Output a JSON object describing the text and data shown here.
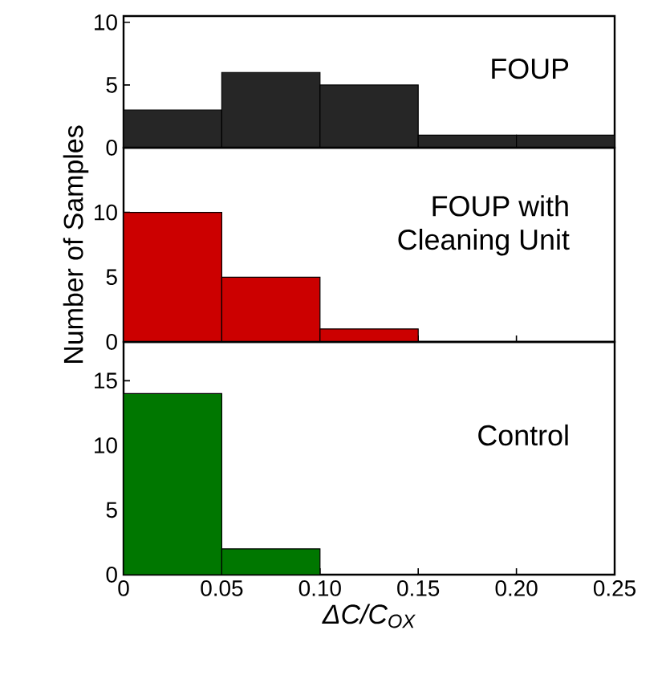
{
  "chart_data": [
    {
      "type": "histogram",
      "bins": [
        0,
        0.05,
        0.1,
        0.15,
        0.2,
        0.25
      ],
      "values": [
        3,
        6,
        5,
        1,
        1
      ],
      "color": "#262626",
      "xlim": [
        0,
        0.25
      ],
      "xticks": [
        {
          "value": 0.05,
          "label": null
        },
        {
          "value": 0.1,
          "label": null
        },
        {
          "value": 0.15,
          "label": null
        },
        {
          "value": 0.2,
          "label": null
        }
      ],
      "ylim": [
        0,
        10.5
      ],
      "yticks": [
        0,
        5,
        10
      ],
      "tick_labels": "y",
      "annotations": [
        "FOUP"
      ]
    },
    {
      "type": "histogram",
      "bins": [
        0,
        0.05,
        0.1,
        0.15,
        0.2,
        0.25
      ],
      "values": [
        10,
        5,
        1,
        0,
        0
      ],
      "color": "#cc0000",
      "xlim": [
        0,
        0.25
      ],
      "xticks": [
        {
          "value": 0.05,
          "label": null
        },
        {
          "value": 0.1,
          "label": null
        },
        {
          "value": 0.15,
          "label": null
        },
        {
          "value": 0.2,
          "label": null
        }
      ],
      "ylim": [
        0,
        15
      ],
      "yticks": [
        0,
        5,
        10
      ],
      "tick_labels": "y",
      "ylabel": "Number of Samples",
      "annotations": [
        "FOUP with",
        "Cleaning Unit"
      ]
    },
    {
      "type": "histogram",
      "bins": [
        0,
        0.05,
        0.1,
        0.15,
        0.2,
        0.25
      ],
      "values": [
        14,
        2,
        0,
        0,
        0
      ],
      "color": "#007700",
      "xlim": [
        0,
        0.25
      ],
      "xticks": [
        0,
        0.05,
        {
          "value": 0.1,
          "label": "0.10"
        },
        0.15,
        {
          "value": 0.2,
          "label": "0.20"
        },
        0.25
      ],
      "ylim": [
        0,
        18
      ],
      "yticks": [
        0,
        5,
        10,
        15
      ],
      "xlabel": "ΔC/C$_{OX}$",
      "annotations": [
        "Control"
      ]
    }
  ]
}
